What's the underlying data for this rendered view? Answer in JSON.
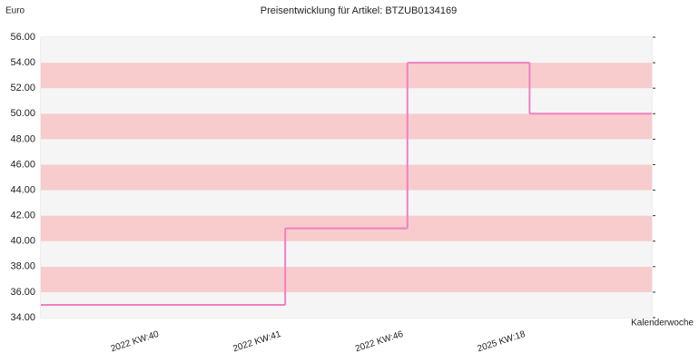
{
  "chart_data": {
    "type": "step",
    "title": "Preisentwicklung für Artikel: BTZUB0134169",
    "y_label": "Euro",
    "x_label": "Kalenderwoche",
    "categories": [
      "2022 KW:40",
      "2022 KW:41",
      "2022 KW:46",
      "2025 KW:18"
    ],
    "values": [
      35,
      41,
      54,
      50
    ],
    "color": "#f080c0",
    "ylim": [
      34,
      56
    ],
    "yticks": [
      {
        "value": 34,
        "label": "34.00"
      },
      {
        "value": 36,
        "label": "36.00"
      },
      {
        "value": 38,
        "label": "38.00"
      },
      {
        "value": 40,
        "label": "40.00"
      },
      {
        "value": 42,
        "label": "42.00"
      },
      {
        "value": 44,
        "label": "44.00"
      },
      {
        "value": 46,
        "label": "46.00"
      },
      {
        "value": 48,
        "label": "48.00"
      },
      {
        "value": 50,
        "label": "50.00"
      },
      {
        "value": 52,
        "label": "52.00"
      },
      {
        "value": 54,
        "label": "54.00"
      },
      {
        "value": 56,
        "label": "56.00"
      }
    ],
    "band_colors": [
      "#f5f5f5",
      "#f8cccc"
    ]
  }
}
